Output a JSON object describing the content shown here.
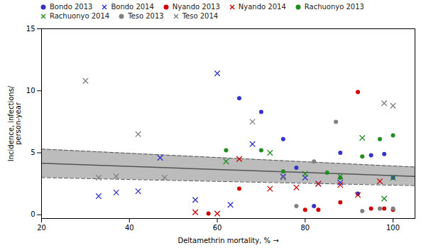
{
  "chart_data": {
    "type": "scatter",
    "xlabel": "Deltamethrin mortality, %",
    "ylabel": "Incidence, infections/\nperson-year",
    "xlim": [
      20,
      105
    ],
    "ylim": [
      -0.3,
      15
    ],
    "xticks": [
      20,
      40,
      60,
      80,
      100
    ],
    "yticks": [
      0,
      5,
      10,
      15
    ],
    "grid": false,
    "series": [
      {
        "type": "area",
        "color": "#b0b0b0",
        "x": [
          20,
          105
        ],
        "lower": [
          3.0,
          2.35
        ],
        "upper": [
          5.3,
          3.85
        ]
      },
      {
        "type": "line",
        "line_style": "solid",
        "color": "#555555",
        "x": [
          20,
          105
        ],
        "values": [
          4.15,
          3.1
        ]
      },
      {
        "type": "line",
        "line_style": "dashed",
        "color": "#555555",
        "x": [
          20,
          105
        ],
        "values": [
          5.3,
          3.85
        ]
      },
      {
        "type": "line",
        "line_style": "dashed",
        "color": "#555555",
        "x": [
          20,
          105
        ],
        "values": [
          3.0,
          2.35
        ]
      },
      {
        "name": "Bondo 2013",
        "type": "scatter",
        "marker": "circle",
        "color": "#3333cc",
        "x": [
          65,
          70,
          75,
          78,
          82,
          88,
          92,
          95,
          98,
          100
        ],
        "values": [
          9.4,
          8.3,
          6.1,
          3.8,
          0.7,
          5.0,
          1.7,
          4.8,
          4.9,
          3.0
        ]
      },
      {
        "name": "Bondo 2014",
        "type": "scatter",
        "marker": "x",
        "color": "#3333cc",
        "x": [
          33,
          37,
          42,
          47,
          55,
          60,
          63,
          68,
          75,
          80,
          83,
          88
        ],
        "values": [
          1.5,
          1.8,
          1.9,
          4.6,
          1.2,
          11.4,
          0.8,
          5.7,
          3.1,
          3.0,
          2.5,
          2.6
        ]
      },
      {
        "name": "Nyando 2013",
        "type": "scatter",
        "marker": "circle",
        "color": "#cc0000",
        "x": [
          58,
          65,
          80,
          83,
          88,
          92,
          95,
          98,
          100
        ],
        "values": [
          0.1,
          2.1,
          0.4,
          0.4,
          1.0,
          9.9,
          0.5,
          0.5,
          0.4
        ]
      },
      {
        "name": "Nyando 2014",
        "type": "scatter",
        "marker": "x",
        "color": "#cc0000",
        "x": [
          55,
          60,
          65,
          72,
          78,
          83,
          88,
          92,
          97
        ],
        "values": [
          0.2,
          0.1,
          4.5,
          2.1,
          2.2,
          2.5,
          2.4,
          1.6,
          2.7
        ]
      },
      {
        "name": "Rachuonyo 2013",
        "type": "scatter",
        "marker": "circle",
        "color": "#228B22",
        "x": [
          62,
          70,
          75,
          85,
          88,
          93,
          97,
          100
        ],
        "values": [
          5.2,
          5.2,
          3.5,
          3.4,
          3.0,
          4.7,
          6.1,
          6.4
        ]
      },
      {
        "name": "Rachuonyo 2014",
        "type": "scatter",
        "marker": "x",
        "color": "#228B22",
        "x": [
          62,
          72,
          80,
          88,
          93,
          98,
          100
        ],
        "values": [
          4.3,
          5.0,
          3.3,
          3.1,
          6.2,
          1.3,
          3.0
        ]
      },
      {
        "name": "Teso 2013",
        "type": "scatter",
        "marker": "circle",
        "color": "#808080",
        "x": [
          78,
          82,
          87,
          93,
          97,
          100
        ],
        "values": [
          0.7,
          4.3,
          7.5,
          0.3,
          0.5,
          0.5
        ]
      },
      {
        "name": "Teso 2014",
        "type": "scatter",
        "marker": "x",
        "color": "#808080",
        "x": [
          30,
          33,
          37,
          42,
          48,
          68,
          75,
          98,
          100
        ],
        "values": [
          10.8,
          3.0,
          3.1,
          6.5,
          3.0,
          7.5,
          3.0,
          9.0,
          8.8
        ]
      }
    ]
  }
}
